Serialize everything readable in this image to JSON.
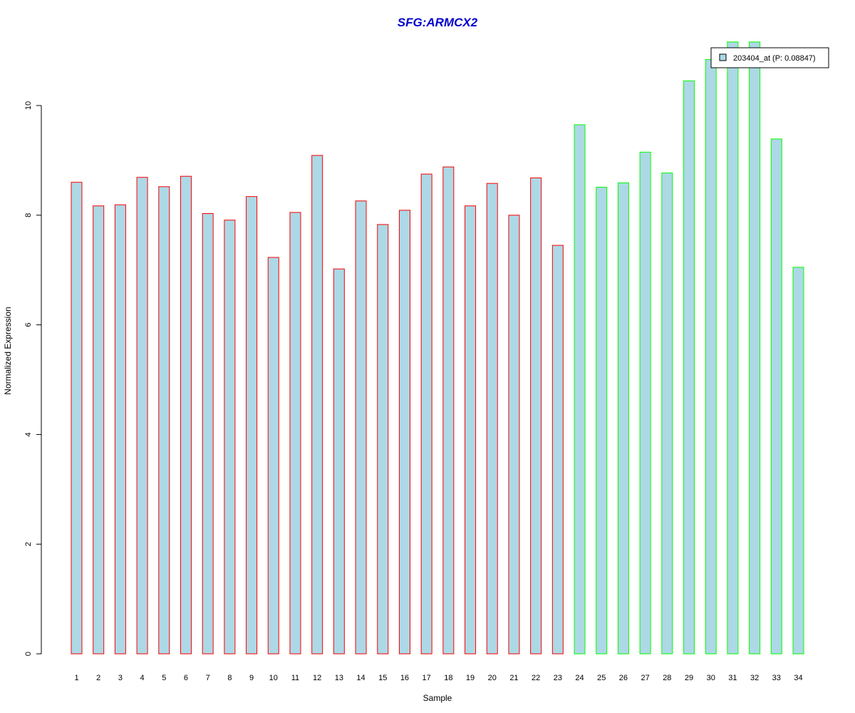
{
  "chart_data": {
    "type": "bar",
    "title": "SFG:ARMCX2",
    "xlabel": "Sample",
    "ylabel": "Normalized Expression",
    "categories": [
      "1",
      "2",
      "3",
      "4",
      "5",
      "6",
      "7",
      "8",
      "9",
      "10",
      "11",
      "12",
      "13",
      "14",
      "15",
      "16",
      "17",
      "18",
      "19",
      "20",
      "21",
      "22",
      "23",
      "24",
      "25",
      "26",
      "27",
      "28",
      "29",
      "30",
      "31",
      "32",
      "33",
      "34"
    ],
    "series": [
      {
        "name": "203404_at (P: 0.08847)",
        "values": [
          8.6,
          8.17,
          8.19,
          8.69,
          8.52,
          8.71,
          8.03,
          7.91,
          8.34,
          7.23,
          8.05,
          9.09,
          7.02,
          8.26,
          7.83,
          8.09,
          8.75,
          8.88,
          8.17,
          8.58,
          8.0,
          8.68,
          7.45,
          9.65,
          8.51,
          8.59,
          9.15,
          8.77,
          10.45,
          10.84,
          11.16,
          11.16,
          9.39,
          7.05
        ]
      }
    ],
    "groups": [
      {
        "samples": [
          1,
          23
        ],
        "edge_color": "#ff0000"
      },
      {
        "samples": [
          24,
          34
        ],
        "edge_color": "#00ff00"
      }
    ],
    "bar_fill": "#add8e6",
    "title_color": "#0000cd",
    "yticks": [
      "0",
      "2",
      "4",
      "6",
      "8",
      "10"
    ],
    "ylim": [
      0,
      11.2
    ],
    "grid": false,
    "legend_position": "top-right"
  }
}
